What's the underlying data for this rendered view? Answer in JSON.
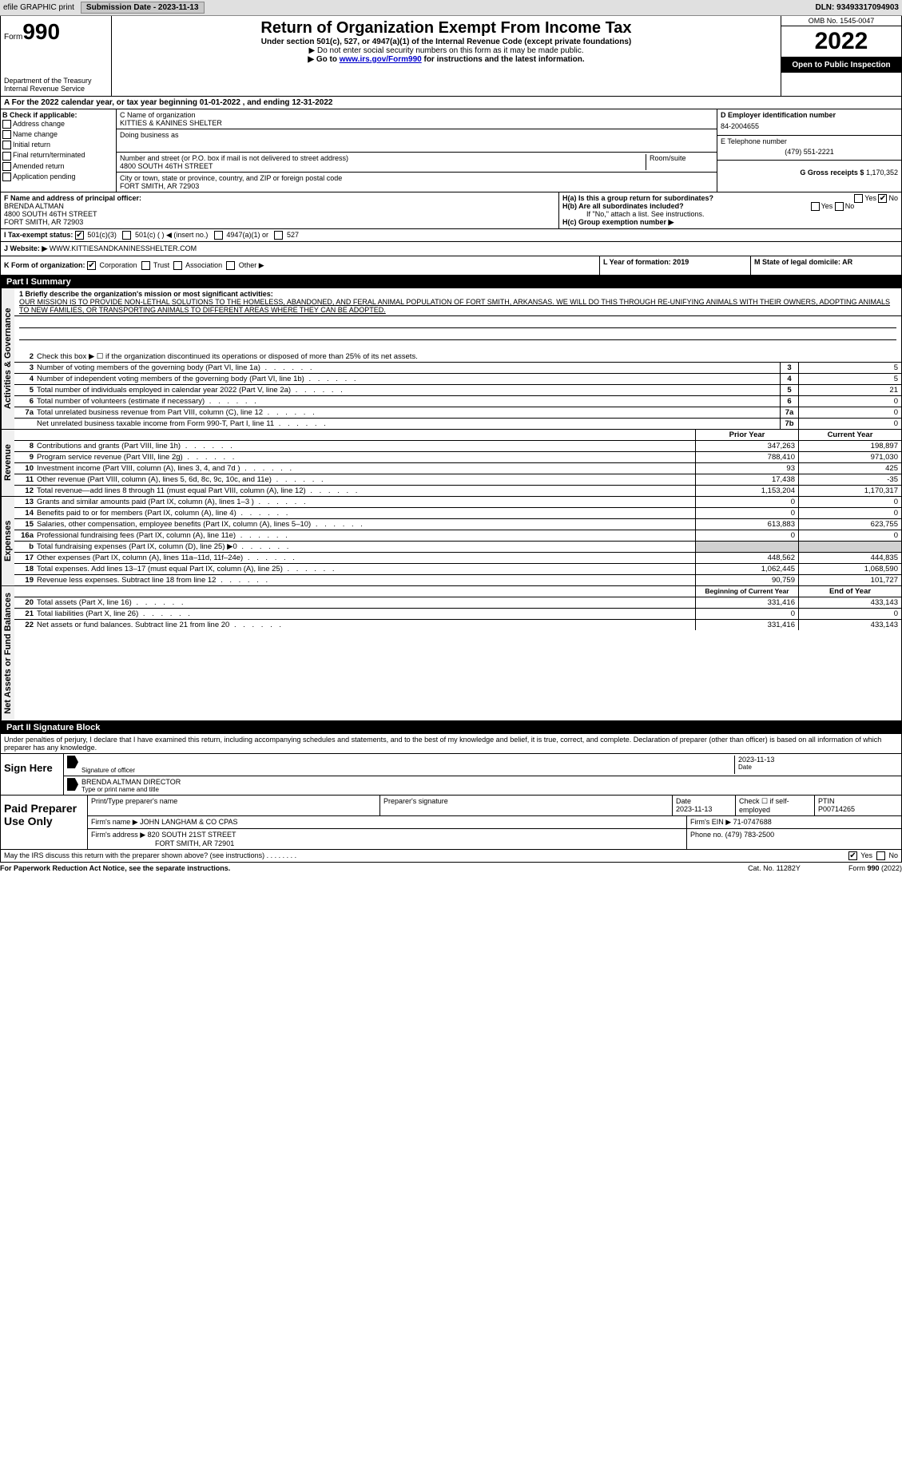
{
  "topbar": {
    "efile_label": "efile GRAPHIC print",
    "submission_label": "Submission Date - 2023-11-13",
    "dln_label": "DLN: 93493317094903"
  },
  "header": {
    "form_word": "Form",
    "form_num": "990",
    "dept": "Department of the Treasury",
    "irs": "Internal Revenue Service",
    "title": "Return of Organization Exempt From Income Tax",
    "subtitle": "Under section 501(c), 527, or 4947(a)(1) of the Internal Revenue Code (except private foundations)",
    "warn": "▶ Do not enter social security numbers on this form as it may be made public.",
    "goto": "▶ Go to ",
    "goto_link": "www.irs.gov/Form990",
    "goto_rest": " for instructions and the latest information.",
    "omb": "OMB No. 1545-0047",
    "year": "2022",
    "open": "Open to Public Inspection"
  },
  "row_a": "A For the 2022 calendar year, or tax year beginning 01-01-2022     , and ending 12-31-2022",
  "col_b": {
    "header": "B Check if applicable:",
    "items": [
      "Address change",
      "Name change",
      "Initial return",
      "Final return/terminated",
      "Amended return",
      "Application pending"
    ]
  },
  "col_c": {
    "c_label": "C Name of organization",
    "org_name": "KITTIES & KANINES SHELTER",
    "dba_label": "Doing business as",
    "addr_label": "Number and street (or P.O. box if mail is not delivered to street address)",
    "room_label": "Room/suite",
    "address": "4800 SOUTH 46TH STREET",
    "city_label": "City or town, state or province, country, and ZIP or foreign postal code",
    "city": "FORT SMITH, AR  72903"
  },
  "col_d": {
    "d_label": "D Employer identification number",
    "ein": "84-2004655",
    "e_label": "E Telephone number",
    "phone": "(479) 551-2221",
    "g_label": "G Gross receipts $",
    "gross": "1,170,352"
  },
  "f_section": {
    "f_label": "F  Name and address of principal officer:",
    "name": "BRENDA ALTMAN",
    "addr1": "4800 SOUTH 46TH STREET",
    "addr2": "FORT SMITH, AR  72903",
    "i_label": "I   Tax-exempt status:",
    "i_501c3": "501(c)(3)",
    "i_501c": "501(c) (    ) ◀ (insert no.)",
    "i_4947": "4947(a)(1) or",
    "i_527": "527",
    "j_label": "J   Website: ▶",
    "website": "WWW.KITTIESANDKANINESSHELTER.COM"
  },
  "h_section": {
    "ha": "H(a)  Is this a group return for subordinates?",
    "hb": "H(b)  Are all subordinates included?",
    "hb_note": "If \"No,\" attach a list. See instructions.",
    "hc": "H(c)  Group exemption number ▶",
    "yes": "Yes",
    "no": "No"
  },
  "k_section": {
    "k_label": "K Form of organization:",
    "corp": "Corporation",
    "trust": "Trust",
    "assoc": "Association",
    "other": "Other ▶",
    "l_label": "L Year of formation: 2019",
    "m_label": "M State of legal domicile: AR"
  },
  "part1": {
    "header": "Part I       Summary",
    "q1": "1  Briefly describe the organization's mission or most significant activities:",
    "mission": "OUR MISSION IS TO PROVIDE NON-LETHAL SOLUTIONS TO THE HOMELESS, ABANDONED, AND FERAL ANIMAL POPULATION OF FORT SMITH, ARKANSAS. WE WILL DO THIS THROUGH RE-UNIFYING ANIMALS WITH THEIR OWNERS, ADOPTING ANIMALS TO NEW FAMILIES, OR TRANSPORTING ANIMALS TO DIFFERENT AREAS WHERE THEY CAN BE ADOPTED.",
    "q2": "Check this box ▶ ☐  if the organization discontinued its operations or disposed of more than 25% of its net assets.",
    "lines": [
      {
        "n": "3",
        "label": "Number of voting members of the governing body (Part VI, line 1a)",
        "box": "3",
        "v": "5"
      },
      {
        "n": "4",
        "label": "Number of independent voting members of the governing body (Part VI, line 1b)",
        "box": "4",
        "v": "5"
      },
      {
        "n": "5",
        "label": "Total number of individuals employed in calendar year 2022 (Part V, line 2a)",
        "box": "5",
        "v": "21"
      },
      {
        "n": "6",
        "label": "Total number of volunteers (estimate if necessary)",
        "box": "6",
        "v": "0"
      },
      {
        "n": "7a",
        "label": "Total unrelated business revenue from Part VIII, column (C), line 12",
        "box": "7a",
        "v": "0"
      },
      {
        "n": "",
        "label": "Net unrelated business taxable income from Form 990-T, Part I, line 11",
        "box": "7b",
        "v": "0"
      }
    ],
    "col_hdr1": "Prior Year",
    "col_hdr2": "Current Year",
    "rev_lines": [
      {
        "n": "8",
        "label": "Contributions and grants (Part VIII, line 1h)",
        "py": "347,263",
        "cy": "198,897"
      },
      {
        "n": "9",
        "label": "Program service revenue (Part VIII, line 2g)",
        "py": "788,410",
        "cy": "971,030"
      },
      {
        "n": "10",
        "label": "Investment income (Part VIII, column (A), lines 3, 4, and 7d )",
        "py": "93",
        "cy": "425"
      },
      {
        "n": "11",
        "label": "Other revenue (Part VIII, column (A), lines 5, 6d, 8c, 9c, 10c, and 11e)",
        "py": "17,438",
        "cy": "-35"
      },
      {
        "n": "12",
        "label": "Total revenue—add lines 8 through 11 (must equal Part VIII, column (A), line 12)",
        "py": "1,153,204",
        "cy": "1,170,317"
      }
    ],
    "exp_lines": [
      {
        "n": "13",
        "label": "Grants and similar amounts paid (Part IX, column (A), lines 1–3 )",
        "py": "0",
        "cy": "0"
      },
      {
        "n": "14",
        "label": "Benefits paid to or for members (Part IX, column (A), line 4)",
        "py": "0",
        "cy": "0"
      },
      {
        "n": "15",
        "label": "Salaries, other compensation, employee benefits (Part IX, column (A), lines 5–10)",
        "py": "613,883",
        "cy": "623,755"
      },
      {
        "n": "16a",
        "label": "Professional fundraising fees (Part IX, column (A), line 11e)",
        "py": "0",
        "cy": "0"
      },
      {
        "n": "b",
        "label": "Total fundraising expenses (Part IX, column (D), line 25) ▶0",
        "py": "",
        "cy": "",
        "gray": true
      },
      {
        "n": "17",
        "label": "Other expenses (Part IX, column (A), lines 11a–11d, 11f–24e)",
        "py": "448,562",
        "cy": "444,835"
      },
      {
        "n": "18",
        "label": "Total expenses. Add lines 13–17 (must equal Part IX, column (A), line 25)",
        "py": "1,062,445",
        "cy": "1,068,590"
      },
      {
        "n": "19",
        "label": "Revenue less expenses. Subtract line 18 from line 12",
        "py": "90,759",
        "cy": "101,727"
      }
    ],
    "na_hdr1": "Beginning of Current Year",
    "na_hdr2": "End of Year",
    "na_lines": [
      {
        "n": "20",
        "label": "Total assets (Part X, line 16)",
        "py": "331,416",
        "cy": "433,143"
      },
      {
        "n": "21",
        "label": "Total liabilities (Part X, line 26)",
        "py": "0",
        "cy": "0"
      },
      {
        "n": "22",
        "label": "Net assets or fund balances. Subtract line 21 from line 20",
        "py": "331,416",
        "cy": "433,143"
      }
    ],
    "vt_gov": "Activities & Governance",
    "vt_rev": "Revenue",
    "vt_exp": "Expenses",
    "vt_na": "Net Assets or Fund Balances"
  },
  "part2": {
    "header": "Part II      Signature Block",
    "decl": "Under penalties of perjury, I declare that I have examined this return, including accompanying schedules and statements, and to the best of my knowledge and belief, it is true, correct, and complete. Declaration of preparer (other than officer) is based on all information of which preparer has any knowledge.",
    "sign_here": "Sign Here",
    "sig_officer": "Signature of officer",
    "date": "Date",
    "date_val": "2023-11-13",
    "name_title": "BRENDA ALTMAN  DIRECTOR",
    "type_name": "Type or print name and title",
    "paid": "Paid Preparer Use Only",
    "prep_name_lbl": "Print/Type preparer's name",
    "prep_sig_lbl": "Preparer's signature",
    "prep_date_lbl": "Date",
    "prep_date": "2023-11-13",
    "check_self": "Check ☐ if self-employed",
    "ptin_lbl": "PTIN",
    "ptin": "P00714265",
    "firm_name_lbl": "Firm's name      ▶",
    "firm_name": "JOHN LANGHAM & CO CPAS",
    "firm_ein_lbl": "Firm's EIN ▶",
    "firm_ein": "71-0747688",
    "firm_addr_lbl": "Firm's address ▶",
    "firm_addr1": "820 SOUTH 21ST STREET",
    "firm_addr2": "FORT SMITH, AR  72901",
    "phone_lbl": "Phone no.",
    "phone": "(479) 783-2500",
    "discuss": "May the IRS discuss this return with the preparer shown above? (see instructions)",
    "yes": "Yes",
    "no": "No"
  },
  "footer": {
    "pra": "For Paperwork Reduction Act Notice, see the separate instructions.",
    "cat": "Cat. No. 11282Y",
    "form": "Form 990 (2022)"
  }
}
